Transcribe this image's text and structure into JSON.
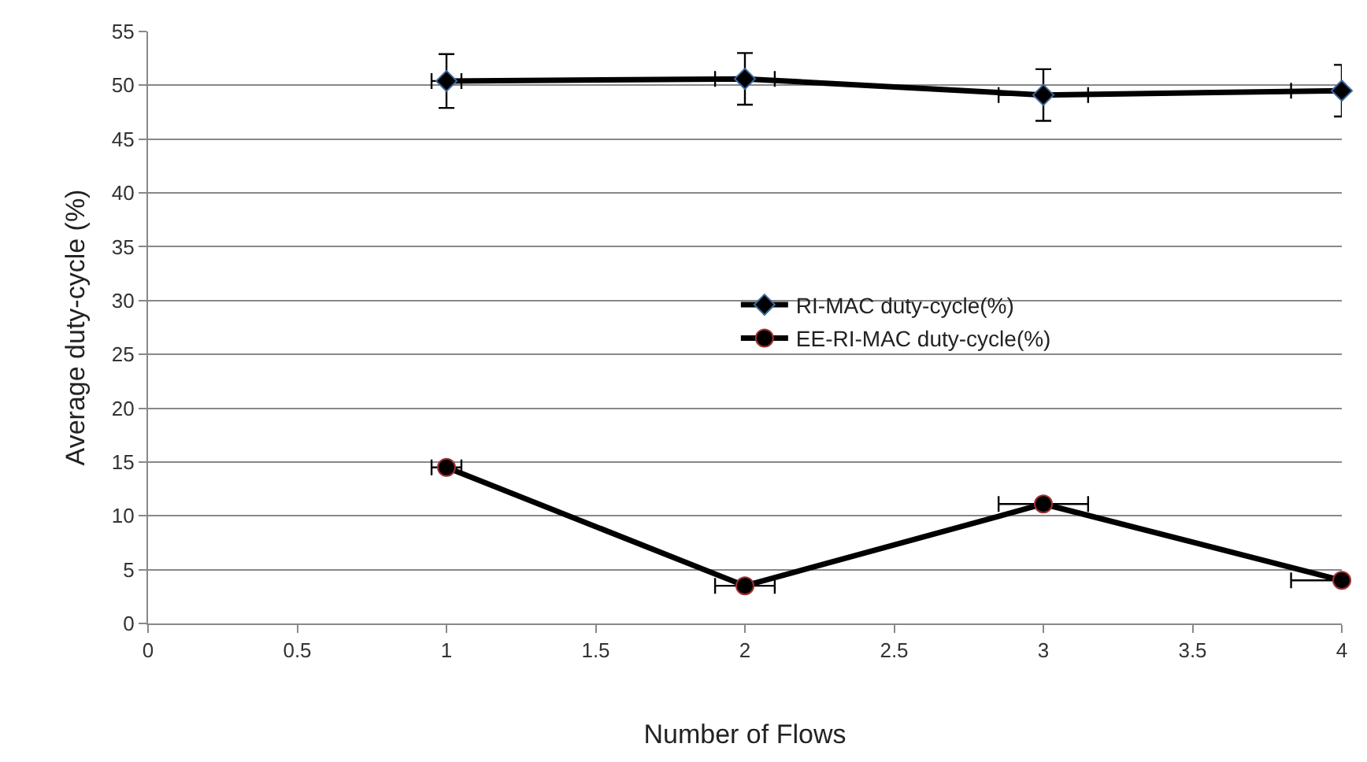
{
  "chart_data": {
    "type": "line",
    "xlabel": "Number of Flows",
    "ylabel": "Average duty-cycle (%)",
    "xlim": [
      0,
      4
    ],
    "xticks": [
      0,
      0.5,
      1,
      1.5,
      2,
      2.5,
      3,
      3.5,
      4
    ],
    "ylim": [
      0,
      55
    ],
    "yticks": [
      0,
      5,
      10,
      15,
      20,
      25,
      30,
      35,
      40,
      45,
      50,
      55
    ],
    "grid": "y",
    "legend": "center",
    "line_style": "solid",
    "series": [
      {
        "name": "RI-MAC duty-cycle(%)",
        "color": "#000000",
        "marker": "diamond",
        "x": [
          1,
          2,
          3,
          4
        ],
        "values": [
          50.4,
          50.6,
          49.1,
          49.5
        ],
        "errors": [
          2.5,
          2.4,
          2.4,
          2.4
        ],
        "xerrors": [
          0.05,
          0.1,
          0.15,
          0.17
        ]
      },
      {
        "name": "EE-RI-MAC duty-cycle(%)",
        "color": "#000000",
        "marker": "circle",
        "x": [
          1,
          2,
          3,
          4
        ],
        "values": [
          14.5,
          3.5,
          11.1,
          4.0
        ],
        "xerrors": [
          0.05,
          0.1,
          0.15,
          0.17
        ]
      }
    ]
  }
}
